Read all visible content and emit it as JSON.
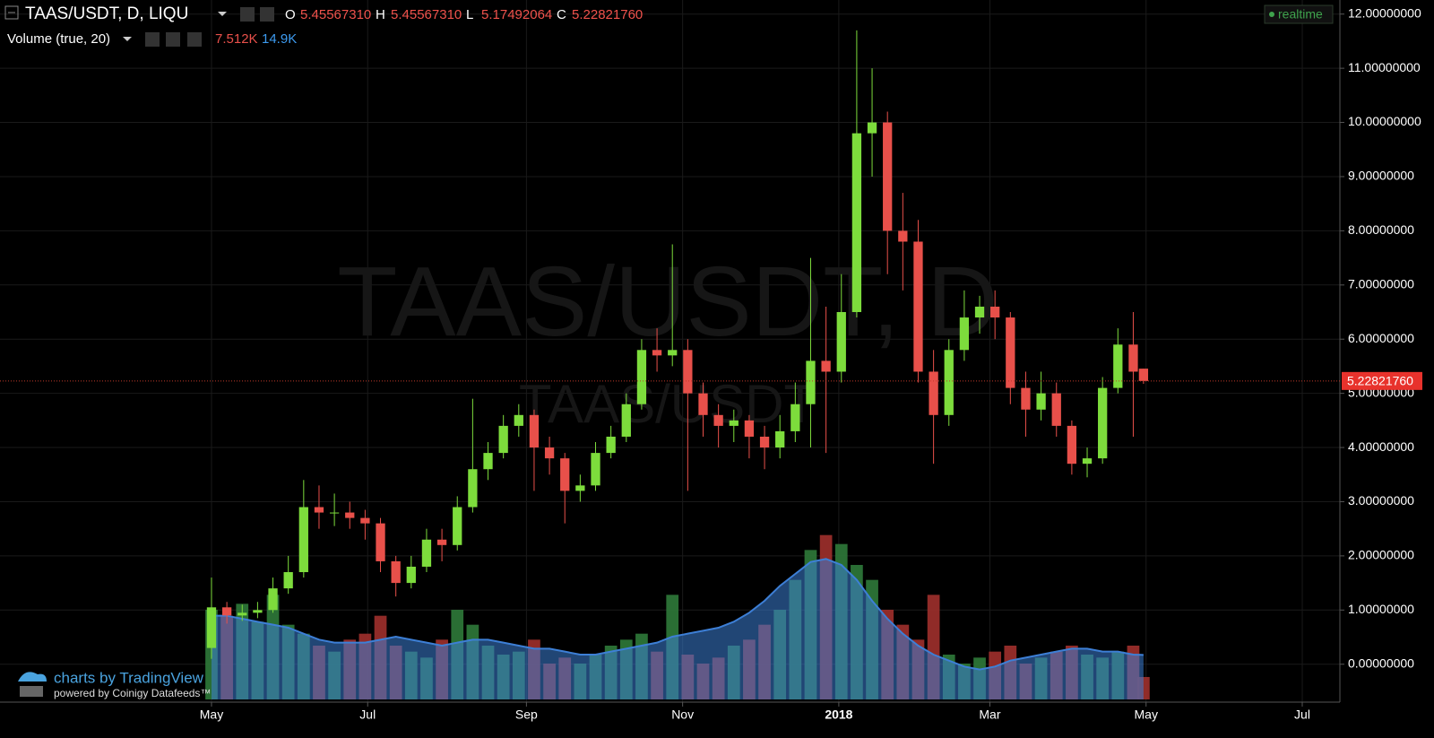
{
  "chart_data": {
    "type": "candlestick",
    "title": "TAAS/USDT, D, LIQU",
    "watermark": "TAAS/USDT, D",
    "watermark_sub": "TAAS/USDT",
    "ohlc_legend": [
      {
        "key": "O",
        "text": "5.45567310"
      },
      {
        "key": "H",
        "text": "5.45567310"
      },
      {
        "key": "L",
        "text": "5.17492064"
      },
      {
        "key": "C",
        "text": "5.22821760"
      }
    ],
    "status": "realtime",
    "last_price_label": "5.22821760",
    "branding": "charts by TradingView",
    "branding_sub": "powered by Coinigy Datafeeds™",
    "up_color": "#7ddc3c",
    "down_color": "#e8504a",
    "grid": true,
    "xlim": [
      -82.6,
      440.7
    ],
    "xticks": [
      {
        "value": 0,
        "label": "May"
      },
      {
        "value": 61,
        "label": "Jul"
      },
      {
        "value": 123,
        "label": "Sep"
      },
      {
        "value": 184,
        "label": "Nov"
      },
      {
        "value": 245,
        "label": "2018"
      },
      {
        "value": 304,
        "label": "Mar"
      },
      {
        "value": 365,
        "label": "May"
      },
      {
        "value": 426,
        "label": "Jul"
      }
    ],
    "ylim": [
      -0.65,
      12.26
    ],
    "yticks": [
      {
        "value": 0,
        "label": "0.00000000"
      },
      {
        "value": 1,
        "label": "1.00000000"
      },
      {
        "value": 2,
        "label": "2.00000000"
      },
      {
        "value": 3,
        "label": "3.00000000"
      },
      {
        "value": 4,
        "label": "4.00000000"
      },
      {
        "value": 5,
        "label": "5.00000000"
      },
      {
        "value": 6,
        "label": "6.00000000"
      },
      {
        "value": 7,
        "label": "7.00000000"
      },
      {
        "value": 8,
        "label": "8.00000000"
      },
      {
        "value": 9,
        "label": "9.00000000"
      },
      {
        "value": 10,
        "label": "10.00000000"
      },
      {
        "value": 11,
        "label": "11.00000000"
      },
      {
        "value": 12,
        "label": "12.00000000"
      }
    ],
    "x": [
      0,
      6,
      12,
      18,
      24,
      30,
      36,
      42,
      48,
      54,
      60,
      66,
      72,
      78,
      84,
      90,
      96,
      102,
      108,
      114,
      120,
      126,
      132,
      138,
      144,
      150,
      156,
      162,
      168,
      174,
      180,
      186,
      192,
      198,
      204,
      210,
      216,
      222,
      228,
      234,
      240,
      246,
      252,
      258,
      264,
      270,
      276,
      282,
      288,
      294,
      300,
      306,
      312,
      318,
      324,
      330,
      336,
      342,
      348,
      354,
      360,
      364
    ],
    "open": [
      0.3,
      1.05,
      0.9,
      0.95,
      1.0,
      1.4,
      1.7,
      2.9,
      2.8,
      2.8,
      2.7,
      2.6,
      1.9,
      1.5,
      1.8,
      2.3,
      2.2,
      2.9,
      3.6,
      3.9,
      4.4,
      4.6,
      4.0,
      3.8,
      3.2,
      3.3,
      3.9,
      4.2,
      4.8,
      5.8,
      5.7,
      5.8,
      5.0,
      4.6,
      4.4,
      4.5,
      4.2,
      4.0,
      4.3,
      4.8,
      5.6,
      5.4,
      6.5,
      9.8,
      10.0,
      8.0,
      7.8,
      5.4,
      4.6,
      5.8,
      6.4,
      6.6,
      6.4,
      5.1,
      4.7,
      5.0,
      4.4,
      3.7,
      3.8,
      5.1,
      5.9,
      5.4556731
    ],
    "high": [
      1.6,
      1.15,
      1.1,
      1.15,
      1.6,
      2.0,
      3.4,
      3.3,
      3.15,
      3.0,
      2.85,
      2.7,
      2.0,
      2.0,
      2.5,
      2.5,
      3.1,
      4.9,
      4.1,
      4.6,
      4.8,
      4.7,
      4.2,
      3.9,
      3.5,
      4.1,
      4.4,
      5.0,
      6.0,
      6.2,
      7.75,
      6.0,
      5.2,
      4.8,
      4.7,
      4.6,
      4.4,
      4.6,
      5.2,
      7.5,
      6.6,
      7.2,
      11.7,
      11.0,
      10.2,
      8.7,
      8.2,
      5.8,
      6.0,
      6.9,
      6.8,
      6.9,
      6.5,
      5.4,
      5.4,
      5.2,
      4.5,
      4.0,
      5.3,
      6.2,
      6.5,
      5.4556731
    ],
    "low": [
      0.1,
      0.75,
      0.8,
      0.85,
      0.95,
      1.3,
      1.6,
      2.5,
      2.55,
      2.5,
      2.3,
      1.7,
      1.25,
      1.4,
      1.7,
      1.9,
      2.1,
      2.8,
      3.4,
      3.8,
      4.2,
      3.2,
      3.5,
      2.6,
      3.0,
      3.2,
      3.8,
      4.1,
      4.7,
      5.4,
      5.5,
      3.2,
      4.2,
      4.0,
      4.1,
      3.8,
      3.6,
      3.8,
      4.1,
      4.0,
      3.9,
      5.2,
      6.4,
      9.0,
      7.2,
      6.9,
      5.2,
      3.7,
      4.4,
      5.6,
      6.1,
      6.0,
      4.8,
      4.2,
      4.5,
      4.2,
      3.5,
      3.45,
      3.7,
      5.0,
      4.2,
      5.17492064
    ],
    "close": [
      1.05,
      0.9,
      0.95,
      1.0,
      1.4,
      1.7,
      2.9,
      2.8,
      2.8,
      2.7,
      2.6,
      1.9,
      1.5,
      1.8,
      2.3,
      2.2,
      2.9,
      3.6,
      3.9,
      4.4,
      4.6,
      4.0,
      3.8,
      3.2,
      3.3,
      3.9,
      4.2,
      4.8,
      5.8,
      5.7,
      5.8,
      5.0,
      4.6,
      4.4,
      4.5,
      4.2,
      4.0,
      4.3,
      4.8,
      5.6,
      5.4,
      6.5,
      9.8,
      10.0,
      8.0,
      7.8,
      5.4,
      4.6,
      5.8,
      6.4,
      6.6,
      6.4,
      5.1,
      4.7,
      5.0,
      4.4,
      3.7,
      3.8,
      5.1,
      5.9,
      5.4,
      5.2282176
    ],
    "volume": {
      "name": "Volume (true, 20)",
      "axis": "y2",
      "value_label": "7.512K",
      "ma_label": "14.9K",
      "ma_color": "#3d7fd6",
      "values": [
        30,
        28,
        32,
        26,
        35,
        25,
        22,
        18,
        16,
        20,
        22,
        28,
        18,
        16,
        14,
        20,
        30,
        25,
        18,
        15,
        16,
        20,
        12,
        14,
        12,
        15,
        18,
        20,
        22,
        16,
        35,
        15,
        12,
        14,
        18,
        20,
        25,
        30,
        40,
        50,
        55,
        52,
        45,
        40,
        30,
        25,
        20,
        35,
        15,
        12,
        14,
        16,
        18,
        12,
        14,
        16,
        18,
        15,
        14,
        16,
        18,
        7.512
      ],
      "ma": [
        28,
        28,
        27,
        26,
        25,
        24,
        22,
        20,
        19,
        19,
        19,
        20,
        21,
        20,
        19,
        18,
        19,
        20,
        20,
        19,
        18,
        17,
        17,
        16,
        15,
        15,
        16,
        17,
        18,
        19,
        21,
        22,
        23,
        24,
        26,
        29,
        33,
        38,
        42,
        46,
        47,
        45,
        40,
        33,
        27,
        22,
        18,
        15,
        13,
        11,
        10,
        11,
        13,
        14,
        15,
        16,
        17,
        17,
        16,
        16,
        15,
        14.9
      ]
    },
    "y2lim": [
      0,
      234
    ]
  }
}
